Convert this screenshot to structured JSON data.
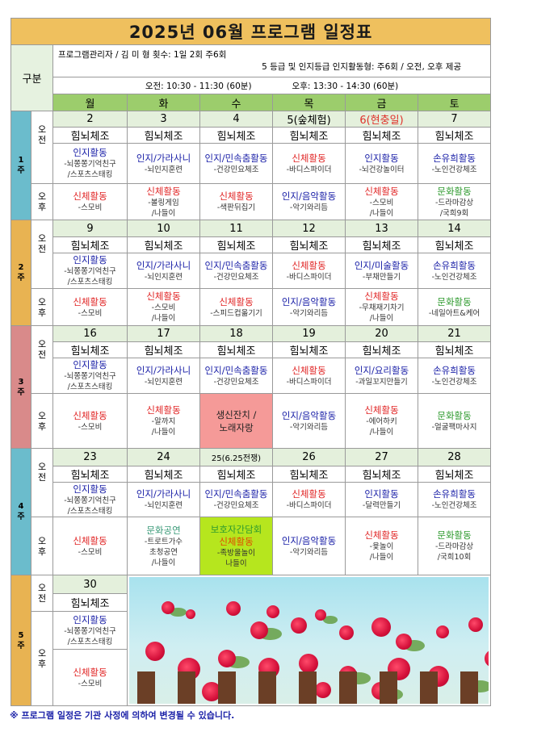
{
  "title": "2025년 06월 프로그램 일정표",
  "gubun": "구분",
  "info": {
    "line1": "프로그램관리자 / 김 미 형   횟수: 1일 2회 주6회",
    "line2": "5 등급 및 인지등급 인지활동형: 주6회 / 오전, 오후 제공",
    "morning_time": "오전: 10:30 - 11:30 (60분)",
    "afternoon_time": "오후: 13:30 - 14:30 (60분)"
  },
  "days": [
    "월",
    "화",
    "수",
    "목",
    "금",
    "토"
  ],
  "am": "오\n전",
  "pm": "오\n후",
  "colors": {
    "title_bg": "#efc05e",
    "header_bg": "#9ccd6c",
    "date_bg": "#e4f0dc",
    "week_teal": "#6bbccc",
    "week_orange": "#e8b352",
    "week_pink": "#d98a8a",
    "blue": "#1c22a8",
    "red": "#e02424",
    "green": "#2e9a2e"
  },
  "weeks": [
    {
      "label": "1\n주",
      "color": "#6bbccc",
      "days": [
        {
          "date": "2",
          "him": "힘뇌체조",
          "am": [
            [
              "인지활동",
              "blue"
            ],
            [
              "-뇌쫑쫑기억친구"
            ],
            [
              "/스포츠스태킹"
            ]
          ],
          "pm": [
            [
              "신체활동",
              "red"
            ],
            [
              "-스모비"
            ]
          ]
        },
        {
          "date": "3",
          "him": "힘뇌체조",
          "am": [
            [
              "인지/가라사니",
              "blue"
            ],
            [
              "-뇌인지훈련"
            ]
          ],
          "pm": [
            [
              "신체활동",
              "red"
            ],
            [
              "-볼링게임"
            ],
            [
              "/나들이"
            ]
          ]
        },
        {
          "date": "4",
          "him": "힘뇌체조",
          "am": [
            [
              "인지/민속춤활동",
              "blue"
            ],
            [
              "-건강민요체조"
            ]
          ],
          "pm": [
            [
              "신체활동",
              "red"
            ],
            [
              "-색판뒤집기"
            ]
          ]
        },
        {
          "date": "5(숲체험)",
          "him": "힘뇌체조",
          "am": [
            [
              "신체활동",
              "red"
            ],
            [
              "-바디스파이더"
            ]
          ],
          "pm": [
            [
              "인지/음악활동",
              "blue"
            ],
            [
              "-악기와리듬"
            ]
          ]
        },
        {
          "date": "6(현충일)",
          "dateColor": "red",
          "him": "힘뇌체조",
          "am": [
            [
              "인지활동",
              "blue"
            ],
            [
              "-뇌건강놀이터"
            ]
          ],
          "pm": [
            [
              "신체활동",
              "red"
            ],
            [
              "-스모비"
            ],
            [
              "/나들이"
            ]
          ]
        },
        {
          "date": "7",
          "him": "힘뇌체조",
          "am": [
            [
              "손유희활동",
              "blue"
            ],
            [
              "-노인건강체조"
            ]
          ],
          "pm": [
            [
              "문화활동",
              "green"
            ],
            [
              "-드라마감상"
            ],
            [
              "/국희9회"
            ]
          ]
        }
      ]
    },
    {
      "label": "2\n주",
      "color": "#e8b352",
      "days": [
        {
          "date": "9",
          "him": "힘뇌체조",
          "am": [
            [
              "인지활동",
              "blue"
            ],
            [
              "-뇌쫑쫑기억친구"
            ],
            [
              "/스포츠스태킹"
            ]
          ],
          "pm": [
            [
              "신체활동",
              "red"
            ],
            [
              "-스모비"
            ]
          ]
        },
        {
          "date": "10",
          "him": "힘뇌체조",
          "am": [
            [
              "인지/가라사니",
              "blue"
            ],
            [
              "-뇌인지훈련"
            ]
          ],
          "pm": [
            [
              "신체활동",
              "red"
            ],
            [
              "-스모비"
            ],
            [
              "/나들이"
            ]
          ]
        },
        {
          "date": "11",
          "him": "힘뇌체조",
          "am": [
            [
              "인지/민속춤활동",
              "blue"
            ],
            [
              "-건강민요체조"
            ]
          ],
          "pm": [
            [
              "신체활동",
              "red"
            ],
            [
              "-스피드컵옮기기"
            ]
          ]
        },
        {
          "date": "12",
          "him": "힘뇌체조",
          "am": [
            [
              "신체활동",
              "red"
            ],
            [
              "-바디스파이더"
            ]
          ],
          "pm": [
            [
              "인지/음악활동",
              "blue"
            ],
            [
              "-악기와리듬"
            ]
          ]
        },
        {
          "date": "13",
          "him": "힘뇌체조",
          "am": [
            [
              "인지/미술활동",
              "blue"
            ],
            [
              "-부채만들기"
            ]
          ],
          "pm": [
            [
              "신체활동",
              "red"
            ],
            [
              "-무채재기차기"
            ],
            [
              "/나들이"
            ]
          ]
        },
        {
          "date": "14",
          "him": "힘뇌체조",
          "am": [
            [
              "손유희활동",
              "blue"
            ],
            [
              "-노인건강체조"
            ]
          ],
          "pm": [
            [
              "문화활동",
              "green"
            ],
            [
              "-네일아트&케어"
            ]
          ]
        }
      ]
    },
    {
      "label": "3\n주",
      "color": "#d98a8a",
      "days": [
        {
          "date": "16",
          "him": "힘뇌체조",
          "am": [
            [
              "인지활동",
              "blue"
            ],
            [
              "-뇌쫑쫑기억친구"
            ],
            [
              "/스포츠스태킹"
            ]
          ],
          "pm": [
            [
              "신체활동",
              "red"
            ],
            [
              "-스모비"
            ]
          ]
        },
        {
          "date": "17",
          "him": "힘뇌체조",
          "am": [
            [
              "인지/가라사니",
              "blue"
            ],
            [
              "-뇌인지훈련"
            ]
          ],
          "pm": [
            [
              "신체활동",
              "red"
            ],
            [
              "-알까지"
            ],
            [
              "/나들이"
            ]
          ]
        },
        {
          "date": "18",
          "him": "힘뇌체조",
          "am": [
            [
              "인지/민속춤활동",
              "blue"
            ],
            [
              "-건강민요체조"
            ]
          ],
          "pm": [
            [
              "생신잔치 /",
              "dark"
            ],
            [
              "노래자랑",
              "dark"
            ]
          ],
          "pmBg": "pink"
        },
        {
          "date": "19",
          "him": "힘뇌체조",
          "am": [
            [
              "신체활동",
              "red"
            ],
            [
              "-바디스파이더"
            ]
          ],
          "pm": [
            [
              "인지/음악활동",
              "blue"
            ],
            [
              "-악기와리듬"
            ]
          ]
        },
        {
          "date": "20",
          "him": "힘뇌체조",
          "am": [
            [
              "인지/요리활동",
              "blue"
            ],
            [
              "-과일꼬지만들기"
            ]
          ],
          "pm": [
            [
              "신체활동",
              "red"
            ],
            [
              "-에어하키"
            ],
            [
              "/나들이"
            ]
          ]
        },
        {
          "date": "21",
          "him": "힘뇌체조",
          "am": [
            [
              "손유희활동",
              "blue"
            ],
            [
              "-노인건강체조"
            ]
          ],
          "pm": [
            [
              "문화활동",
              "green"
            ],
            [
              "-얼굴팩마사지"
            ]
          ]
        }
      ]
    },
    {
      "label": "4\n주",
      "color": "#6bbccc",
      "days": [
        {
          "date": "23",
          "him": "힘뇌체조",
          "am": [
            [
              "인지활동",
              "blue"
            ],
            [
              "-뇌쫑쫑기억친구"
            ],
            [
              "/스포츠스태킹"
            ]
          ],
          "pm": [
            [
              "신체활동",
              "red"
            ],
            [
              "-스모비"
            ]
          ]
        },
        {
          "date": "24",
          "him": "힘뇌체조",
          "am": [
            [
              "인지/가라사니",
              "blue"
            ],
            [
              "-뇌인지훈련"
            ]
          ],
          "pm": [
            [
              "문화공연",
              "teal"
            ],
            [
              "-트로트가수"
            ],
            [
              "초청공연"
            ],
            [
              "/나들이"
            ]
          ]
        },
        {
          "date": "25(6.25전쟁)",
          "dateSmall": true,
          "him": "힘뇌체조",
          "am": [
            [
              "인지/민속춤활동",
              "blue"
            ],
            [
              "-건강민요체조"
            ]
          ],
          "pm": [
            [
              "보호자간담회",
              "green"
            ],
            [
              "신체활동",
              "orange"
            ],
            [
              "-족방울놀이"
            ],
            [
              "나들이"
            ]
          ],
          "pmBg": "lime"
        },
        {
          "date": "26",
          "him": "힘뇌체조",
          "am": [
            [
              "신체활동",
              "red"
            ],
            [
              "-바디스파이더"
            ]
          ],
          "pm": [
            [
              "인지/음악활동",
              "blue"
            ],
            [
              "-악기와리듬"
            ]
          ]
        },
        {
          "date": "27",
          "him": "힘뇌체조",
          "am": [
            [
              "인지활동",
              "blue"
            ],
            [
              "-달력만들기"
            ]
          ],
          "pm": [
            [
              "신체활동",
              "red"
            ],
            [
              "-윷놀이"
            ],
            [
              "/나들이"
            ]
          ]
        },
        {
          "date": "28",
          "him": "힘뇌체조",
          "am": [
            [
              "손유희활동",
              "blue"
            ],
            [
              "-노인건강체조"
            ]
          ],
          "pm": [
            [
              "문화활동",
              "green"
            ],
            [
              "-드라마감상"
            ],
            [
              "/국희10회"
            ]
          ]
        }
      ]
    }
  ],
  "week5": {
    "label": "5\n주",
    "color": "#e8b352",
    "date": "30",
    "him": "힘뇌체조",
    "act1": [
      [
        "인지활동",
        "blue"
      ],
      [
        "-뇌쫑쫑기억친구"
      ],
      [
        "/스포츠스태킹"
      ]
    ],
    "act2": [
      [
        "신체활동",
        "red"
      ],
      [
        "-스모비"
      ]
    ]
  },
  "footer": "※ 프로그램 일정은 기관 사정에 의하여 변경될 수 있습니다."
}
